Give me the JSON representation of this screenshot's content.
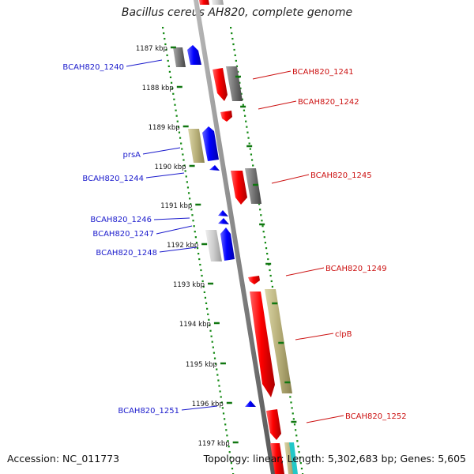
{
  "title": "Bacillus cereus AH820, complete genome",
  "accession": "Accession: NC_011773",
  "summary": "Topology: linear; Length: 5,302,683 bp; Genes: 5,605",
  "ruler": [
    {
      "label": "1187 kbp",
      "kbp": 1187
    },
    {
      "label": "1188 kbp",
      "kbp": 1188
    },
    {
      "label": "1189 kbp",
      "kbp": 1189
    },
    {
      "label": "1190 kbp",
      "kbp": 1190
    },
    {
      "label": "1191 kbp",
      "kbp": 1191
    },
    {
      "label": "1192 kbp",
      "kbp": 1192
    },
    {
      "label": "1193 kbp",
      "kbp": 1193
    },
    {
      "label": "1194 kbp",
      "kbp": 1194
    },
    {
      "label": "1195 kbp",
      "kbp": 1195
    },
    {
      "label": "1196 kbp",
      "kbp": 1196
    },
    {
      "label": "1197 kbp",
      "kbp": 1197
    }
  ],
  "genes_left": [
    {
      "label": "BCAH820_1240",
      "color": "#1a1acc"
    },
    {
      "label": "prsA",
      "color": "#1a1acc"
    },
    {
      "label": "BCAH820_1244",
      "color": "#1a1acc"
    },
    {
      "label": "BCAH820_1246",
      "color": "#1a1acc"
    },
    {
      "label": "BCAH820_1247",
      "color": "#1a1acc"
    },
    {
      "label": "BCAH820_1248",
      "color": "#1a1acc"
    },
    {
      "label": "BCAH820_1251",
      "color": "#1a1acc"
    }
  ],
  "genes_right": [
    {
      "label": "BCAH820_1241",
      "color": "#cc1111"
    },
    {
      "label": "BCAH820_1242",
      "color": "#cc1111"
    },
    {
      "label": "BCAH820_1245",
      "color": "#cc1111"
    },
    {
      "label": "BCAH820_1249",
      "color": "#cc1111"
    },
    {
      "label": "clpB",
      "color": "#cc1111"
    },
    {
      "label": "BCAH820_1252",
      "color": "#cc1111"
    }
  ],
  "colors": {
    "forward": "#ff0000",
    "reverse": "#0000ff",
    "grey": "#777777",
    "light_grey": "#cccccc",
    "khaki": "#b8b07a",
    "backbone": "#888888",
    "ruler_tick": "#117711"
  }
}
